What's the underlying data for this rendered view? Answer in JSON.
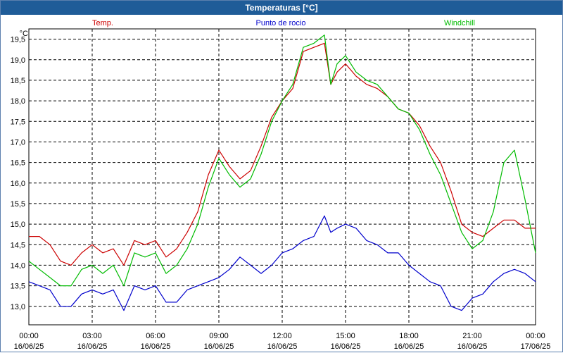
{
  "window": {
    "title": "Temperaturas [°C]"
  },
  "chart_data": {
    "type": "line",
    "title": "Temperaturas [°C]",
    "ylabel": "°C",
    "ylim": [
      12.55,
      19.75
    ],
    "y_ticks": [
      "13,0",
      "13,5",
      "14,0",
      "14,5",
      "15,0",
      "15,5",
      "16,0",
      "16,5",
      "17,0",
      "17,5",
      "18,0",
      "18,5",
      "19,0",
      "19,5"
    ],
    "y_tick_values": [
      13.0,
      13.5,
      14.0,
      14.5,
      15.0,
      15.5,
      16.0,
      16.5,
      17.0,
      17.5,
      18.0,
      18.5,
      19.0,
      19.5
    ],
    "x_hours_range": [
      0,
      24
    ],
    "x_ticks": [
      {
        "time": "00:00",
        "date": "16/06/25"
      },
      {
        "time": "03:00",
        "date": "16/06/25"
      },
      {
        "time": "06:00",
        "date": "16/06/25"
      },
      {
        "time": "09:00",
        "date": "16/06/25"
      },
      {
        "time": "12:00",
        "date": "16/06/25"
      },
      {
        "time": "15:00",
        "date": "16/06/25"
      },
      {
        "time": "18:00",
        "date": "16/06/25"
      },
      {
        "time": "21:00",
        "date": "16/06/25"
      },
      {
        "time": "00:00",
        "date": "17/06/25"
      }
    ],
    "x_tick_hours": [
      0,
      3,
      6,
      9,
      12,
      15,
      18,
      21,
      24
    ],
    "grid": true,
    "legend_placement": "top",
    "series": [
      {
        "name": "Temp.",
        "color": "#cc0000",
        "x": [
          0,
          0.5,
          1,
          1.5,
          2,
          2.5,
          3,
          3.5,
          4,
          4.5,
          5,
          5.5,
          6,
          6.5,
          7,
          7.5,
          8,
          8.5,
          9,
          9.5,
          10,
          10.5,
          11,
          11.5,
          12,
          12.5,
          13,
          13.5,
          14,
          14.3,
          14.6,
          15,
          15.5,
          16,
          16.5,
          17,
          17.5,
          18,
          18.5,
          19,
          19.5,
          20,
          20.5,
          21,
          21.5,
          22,
          22.5,
          23,
          23.5,
          24
        ],
        "y": [
          14.7,
          14.7,
          14.5,
          14.1,
          14.0,
          14.3,
          14.5,
          14.3,
          14.4,
          14.0,
          14.6,
          14.5,
          14.6,
          14.2,
          14.4,
          14.8,
          15.3,
          16.2,
          16.8,
          16.4,
          16.1,
          16.3,
          16.9,
          17.6,
          18.0,
          18.3,
          19.2,
          19.3,
          19.4,
          18.4,
          18.7,
          18.9,
          18.6,
          18.4,
          18.3,
          18.1,
          17.8,
          17.7,
          17.4,
          16.9,
          16.5,
          15.8,
          15.0,
          14.8,
          14.7,
          14.9,
          15.1,
          15.1,
          14.9,
          14.9
        ]
      },
      {
        "name": "Punto de rocio",
        "color": "#0000cc",
        "x": [
          0,
          0.5,
          1,
          1.5,
          2,
          2.5,
          3,
          3.5,
          4,
          4.5,
          5,
          5.5,
          6,
          6.5,
          7,
          7.5,
          8,
          8.5,
          9,
          9.5,
          10,
          10.5,
          11,
          11.5,
          12,
          12.5,
          13,
          13.5,
          14,
          14.3,
          14.6,
          15,
          15.5,
          16,
          16.5,
          17,
          17.5,
          18,
          18.5,
          19,
          19.5,
          20,
          20.5,
          21,
          21.5,
          22,
          22.5,
          23,
          23.5,
          24
        ],
        "y": [
          13.6,
          13.5,
          13.4,
          13.0,
          13.0,
          13.3,
          13.4,
          13.3,
          13.4,
          12.9,
          13.5,
          13.4,
          13.5,
          13.1,
          13.1,
          13.4,
          13.5,
          13.6,
          13.7,
          13.9,
          14.2,
          14.0,
          13.8,
          14.0,
          14.3,
          14.4,
          14.6,
          14.7,
          15.2,
          14.8,
          14.9,
          15.0,
          14.9,
          14.6,
          14.5,
          14.3,
          14.3,
          14.0,
          13.8,
          13.6,
          13.5,
          13.0,
          12.9,
          13.2,
          13.3,
          13.6,
          13.8,
          13.9,
          13.8,
          13.6
        ]
      },
      {
        "name": "Windchill",
        "color": "#00bb00",
        "x": [
          0,
          0.5,
          1,
          1.5,
          2,
          2.5,
          3,
          3.5,
          4,
          4.5,
          5,
          5.5,
          6,
          6.5,
          7,
          7.5,
          8,
          8.5,
          9,
          9.5,
          10,
          10.5,
          11,
          11.5,
          12,
          12.5,
          13,
          13.5,
          14,
          14.3,
          14.6,
          15,
          15.5,
          16,
          16.5,
          17,
          17.5,
          18,
          18.5,
          19,
          19.5,
          20,
          20.5,
          21,
          21.5,
          22,
          22.5,
          23,
          23.5,
          24
        ],
        "y": [
          14.1,
          13.9,
          13.7,
          13.5,
          13.5,
          13.9,
          14.0,
          13.8,
          14.0,
          13.5,
          14.3,
          14.2,
          14.3,
          13.8,
          14.0,
          14.4,
          15.0,
          15.9,
          16.6,
          16.2,
          15.9,
          16.1,
          16.7,
          17.5,
          18.0,
          18.4,
          19.3,
          19.4,
          19.6,
          18.4,
          18.9,
          19.1,
          18.7,
          18.5,
          18.4,
          18.1,
          17.8,
          17.7,
          17.3,
          16.7,
          16.2,
          15.5,
          14.8,
          14.4,
          14.6,
          15.3,
          16.5,
          16.8,
          15.6,
          14.3
        ]
      }
    ]
  }
}
